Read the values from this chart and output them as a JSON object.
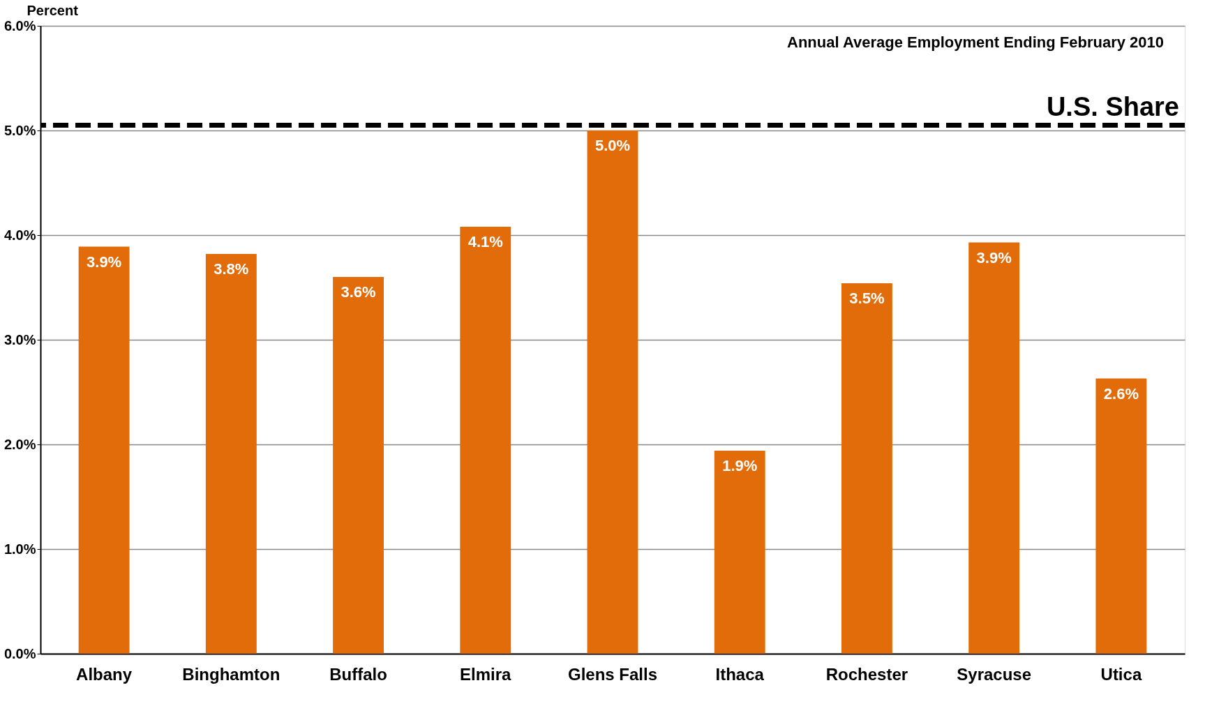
{
  "chart_data": {
    "type": "bar",
    "categories": [
      "Albany",
      "Binghamton",
      "Buffalo",
      "Elmira",
      "Glens Falls",
      "Ithaca",
      "Rochester",
      "Syracuse",
      "Utica"
    ],
    "values": [
      3.89,
      3.82,
      3.6,
      4.08,
      5.0,
      1.94,
      3.54,
      3.93,
      2.63
    ],
    "value_labels": [
      "3.9%",
      "3.8%",
      "3.6%",
      "4.1%",
      "5.0%",
      "1.9%",
      "3.5%",
      "3.9%",
      "2.6%"
    ],
    "color": "#e36c0a",
    "ylabel": "Percent",
    "ylim": [
      0,
      6
    ],
    "yticks": [
      {
        "value": 0,
        "label": "0.0%"
      },
      {
        "value": 1,
        "label": "1.0%"
      },
      {
        "value": 2,
        "label": "2.0%"
      },
      {
        "value": 3,
        "label": "3.0%"
      },
      {
        "value": 4,
        "label": "4.0%"
      },
      {
        "value": 5,
        "label": "5.0%"
      },
      {
        "value": 6,
        "label": "6.0%"
      }
    ],
    "grid": "y",
    "ref_lines": [
      {
        "axis": "y",
        "value": 5.05,
        "label": "U.S. Share",
        "color": "#000000",
        "line_style": "dashed"
      }
    ],
    "annotations": [
      "Annual Average Employment Ending February 2010"
    ]
  }
}
